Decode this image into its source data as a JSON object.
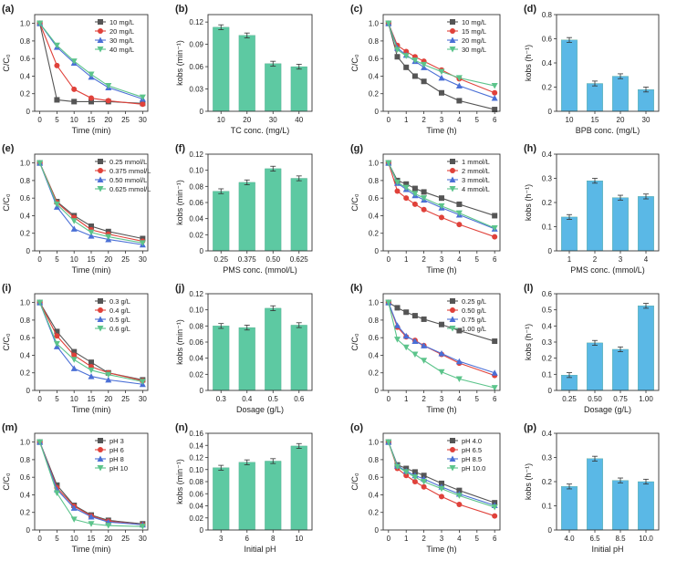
{
  "figure": {
    "panel_labels": [
      "(a)",
      "(b)",
      "(c)",
      "(d)",
      "(e)",
      "(f)",
      "(g)",
      "(h)",
      "(i)",
      "(j)",
      "(k)",
      "(l)",
      "(m)",
      "(n)",
      "(o)",
      "(p)"
    ]
  },
  "colors": {
    "black": "#555555",
    "red": "#e0413a",
    "blue": "#4a6fd6",
    "green": "#5cc48b",
    "bar_green": "#5dc9a2",
    "bar_blue": "#5ab8e6"
  },
  "chart_data": [
    {
      "type": "line",
      "title": "(a)",
      "xlabel": "Time (min)",
      "ylabel": "C/C₀",
      "x": [
        0,
        5,
        10,
        15,
        20,
        30
      ],
      "xlim": [
        -1.5,
        31.5
      ],
      "ylim": [
        0,
        1.1
      ],
      "xticks": [
        0,
        5,
        10,
        15,
        20,
        25,
        30
      ],
      "yticks": [
        0,
        0.2,
        0.4,
        0.6,
        0.8,
        1.0
      ],
      "legend_position": "top-right",
      "series": [
        {
          "name": "10 mg/L",
          "color": "black",
          "marker": "square",
          "values": [
            1.0,
            0.13,
            0.11,
            0.11,
            0.11,
            0.09
          ]
        },
        {
          "name": "20 mg/L",
          "color": "red",
          "marker": "circle",
          "values": [
            1.0,
            0.52,
            0.25,
            0.15,
            0.12,
            0.08
          ]
        },
        {
          "name": "30 mg/L",
          "color": "blue",
          "marker": "triangle",
          "values": [
            1.0,
            0.73,
            0.55,
            0.39,
            0.27,
            0.14
          ]
        },
        {
          "name": "40 mg/L",
          "color": "green",
          "marker": "triangle-down",
          "values": [
            1.0,
            0.75,
            0.57,
            0.42,
            0.29,
            0.16
          ]
        }
      ]
    },
    {
      "type": "bar",
      "title": "(b)",
      "xlabel": "TC conc. (mg/L)",
      "ylabel": "kobs (min⁻¹)",
      "categories": [
        "10",
        "20",
        "30",
        "40"
      ],
      "values": [
        0.113,
        0.102,
        0.064,
        0.06
      ],
      "ylim": [
        0,
        0.13
      ],
      "yticks": [
        0,
        0.03,
        0.06,
        0.09,
        0.12
      ],
      "bar_color": "bar_green"
    },
    {
      "type": "line",
      "title": "(c)",
      "xlabel": "Time (h)",
      "ylabel": "C/C₀",
      "x": [
        0,
        0.5,
        1,
        1.5,
        2,
        3,
        4,
        6
      ],
      "xlim": [
        -0.3,
        6.3
      ],
      "ylim": [
        0,
        1.1
      ],
      "xticks": [
        0,
        1,
        2,
        3,
        4,
        5,
        6
      ],
      "yticks": [
        0,
        0.2,
        0.4,
        0.6,
        0.8,
        1.0
      ],
      "legend_position": "top-right",
      "series": [
        {
          "name": "10 mg/L",
          "color": "black",
          "marker": "square",
          "values": [
            1.0,
            0.62,
            0.5,
            0.4,
            0.34,
            0.21,
            0.12,
            0.02
          ]
        },
        {
          "name": "15 mg/L",
          "color": "red",
          "marker": "circle",
          "values": [
            1.0,
            0.75,
            0.68,
            0.62,
            0.57,
            0.47,
            0.37,
            0.21
          ]
        },
        {
          "name": "20 mg/L",
          "color": "blue",
          "marker": "triangle",
          "values": [
            1.0,
            0.72,
            0.64,
            0.57,
            0.5,
            0.38,
            0.29,
            0.15
          ]
        },
        {
          "name": "30 mg/L",
          "color": "green",
          "marker": "triangle-down",
          "values": [
            1.0,
            0.7,
            0.63,
            0.58,
            0.53,
            0.45,
            0.38,
            0.29
          ]
        }
      ]
    },
    {
      "type": "bar",
      "title": "(d)",
      "xlabel": "BPB conc. (mg/L)",
      "ylabel": "kobs (h⁻¹)",
      "categories": [
        "10",
        "15",
        "20",
        "30"
      ],
      "values": [
        0.59,
        0.23,
        0.29,
        0.18
      ],
      "ylim": [
        0,
        0.8
      ],
      "yticks": [
        0,
        0.2,
        0.4,
        0.6,
        0.8
      ],
      "bar_color": "bar_blue"
    },
    {
      "type": "line",
      "title": "(e)",
      "xlabel": "Time (min)",
      "ylabel": "C/C₀",
      "x": [
        0,
        5,
        10,
        15,
        20,
        30
      ],
      "xlim": [
        -1.5,
        31.5
      ],
      "ylim": [
        0,
        1.1
      ],
      "xticks": [
        0,
        5,
        10,
        15,
        20,
        25,
        30
      ],
      "yticks": [
        0,
        0.2,
        0.4,
        0.6,
        0.8,
        1.0
      ],
      "legend_position": "top-right",
      "series": [
        {
          "name": "0.25 mmol/L",
          "color": "black",
          "marker": "square",
          "values": [
            1.0,
            0.56,
            0.4,
            0.28,
            0.22,
            0.14
          ]
        },
        {
          "name": "0.375 mmol/L",
          "color": "red",
          "marker": "circle",
          "values": [
            1.0,
            0.55,
            0.38,
            0.24,
            0.19,
            0.11
          ]
        },
        {
          "name": "0.50 mmol/L",
          "color": "blue",
          "marker": "triangle",
          "values": [
            1.0,
            0.5,
            0.25,
            0.17,
            0.13,
            0.07
          ]
        },
        {
          "name": "0.625 mmol/L",
          "color": "green",
          "marker": "triangle-down",
          "values": [
            1.0,
            0.53,
            0.34,
            0.21,
            0.16,
            0.09
          ]
        }
      ]
    },
    {
      "type": "bar",
      "title": "(f)",
      "xlabel": "PMS conc. (mmol/L)",
      "ylabel": "kobs (min⁻¹)",
      "categories": [
        "0.25",
        "0.375",
        "0.50",
        "0.625"
      ],
      "values": [
        0.074,
        0.085,
        0.102,
        0.09
      ],
      "ylim": [
        0,
        0.12
      ],
      "yticks": [
        0,
        0.02,
        0.04,
        0.06,
        0.08,
        0.1,
        0.12
      ],
      "bar_color": "bar_green"
    },
    {
      "type": "line",
      "title": "(g)",
      "xlabel": "Time (h)",
      "ylabel": "C/C₀",
      "x": [
        0,
        0.5,
        1,
        1.5,
        2,
        3,
        4,
        6
      ],
      "xlim": [
        -0.3,
        6.3
      ],
      "ylim": [
        0,
        1.1
      ],
      "xticks": [
        0,
        1,
        2,
        3,
        4,
        5,
        6
      ],
      "yticks": [
        0,
        0.2,
        0.4,
        0.6,
        0.8,
        1.0
      ],
      "legend_position": "top-right",
      "series": [
        {
          "name": "1 mmol/L",
          "color": "black",
          "marker": "square",
          "values": [
            1.0,
            0.8,
            0.76,
            0.71,
            0.67,
            0.6,
            0.53,
            0.4
          ]
        },
        {
          "name": "2 mmol/L",
          "color": "red",
          "marker": "circle",
          "values": [
            1.0,
            0.68,
            0.6,
            0.53,
            0.47,
            0.38,
            0.3,
            0.16
          ]
        },
        {
          "name": "3 mmol/L",
          "color": "blue",
          "marker": "triangle",
          "values": [
            1.0,
            0.77,
            0.7,
            0.63,
            0.58,
            0.49,
            0.41,
            0.25
          ]
        },
        {
          "name": "4 mmol/L",
          "color": "green",
          "marker": "triangle-down",
          "values": [
            1.0,
            0.78,
            0.72,
            0.65,
            0.6,
            0.51,
            0.43,
            0.26
          ]
        }
      ]
    },
    {
      "type": "bar",
      "title": "(h)",
      "xlabel": "PMS conc. (mmol/L)",
      "ylabel": "kobs (h⁻¹)",
      "categories": [
        "1",
        "2",
        "3",
        "4"
      ],
      "values": [
        0.14,
        0.29,
        0.22,
        0.225
      ],
      "ylim": [
        0,
        0.4
      ],
      "yticks": [
        0,
        0.1,
        0.2,
        0.3,
        0.4
      ],
      "bar_color": "bar_blue"
    },
    {
      "type": "line",
      "title": "(i)",
      "xlabel": "Time (min)",
      "ylabel": "C/C₀",
      "x": [
        0,
        5,
        10,
        15,
        20,
        30
      ],
      "xlim": [
        -1.5,
        31.5
      ],
      "ylim": [
        0,
        1.1
      ],
      "xticks": [
        0,
        5,
        10,
        15,
        20,
        25,
        30
      ],
      "yticks": [
        0,
        0.2,
        0.4,
        0.6,
        0.8,
        1.0
      ],
      "legend_position": "top-right",
      "series": [
        {
          "name": "0.3 g/L",
          "color": "black",
          "marker": "square",
          "values": [
            1.0,
            0.67,
            0.44,
            0.32,
            0.2,
            0.12
          ]
        },
        {
          "name": "0.4 g/L",
          "color": "red",
          "marker": "circle",
          "values": [
            1.0,
            0.62,
            0.4,
            0.27,
            0.2,
            0.11
          ]
        },
        {
          "name": "0.5 g/L",
          "color": "blue",
          "marker": "triangle",
          "values": [
            1.0,
            0.5,
            0.25,
            0.16,
            0.12,
            0.07
          ]
        },
        {
          "name": "0.6 g/L",
          "color": "green",
          "marker": "triangle-down",
          "values": [
            1.0,
            0.53,
            0.35,
            0.23,
            0.18,
            0.1
          ]
        }
      ]
    },
    {
      "type": "bar",
      "title": "(j)",
      "xlabel": "Dosage (g/L)",
      "ylabel": "kobs (min⁻¹)",
      "categories": [
        "0.3",
        "0.4",
        "0.5",
        "0.6"
      ],
      "values": [
        0.08,
        0.078,
        0.102,
        0.081
      ],
      "ylim": [
        0,
        0.12
      ],
      "yticks": [
        0,
        0.02,
        0.04,
        0.06,
        0.08,
        0.1,
        0.12
      ],
      "bar_color": "bar_green"
    },
    {
      "type": "line",
      "title": "(k)",
      "xlabel": "Time (h)",
      "ylabel": "C/C₀",
      "x": [
        0,
        0.5,
        1,
        1.5,
        2,
        3,
        4,
        6
      ],
      "xlim": [
        -0.3,
        6.3
      ],
      "ylim": [
        0,
        1.1
      ],
      "xticks": [
        0,
        1,
        2,
        3,
        4,
        5,
        6
      ],
      "yticks": [
        0,
        0.2,
        0.4,
        0.6,
        0.8,
        1.0
      ],
      "legend_position": "top-right",
      "series": [
        {
          "name": "0.25 g/L",
          "color": "black",
          "marker": "square",
          "values": [
            1.0,
            0.94,
            0.89,
            0.85,
            0.81,
            0.75,
            0.68,
            0.56
          ]
        },
        {
          "name": "0.50 g/L",
          "color": "red",
          "marker": "circle",
          "values": [
            1.0,
            0.72,
            0.61,
            0.57,
            0.51,
            0.41,
            0.31,
            0.17
          ]
        },
        {
          "name": "0.75 g/L",
          "color": "blue",
          "marker": "triangle",
          "values": [
            1.0,
            0.74,
            0.62,
            0.56,
            0.51,
            0.42,
            0.33,
            0.2
          ]
        },
        {
          "name": "1.00 g/L",
          "color": "green",
          "marker": "triangle-down",
          "values": [
            1.0,
            0.58,
            0.49,
            0.41,
            0.34,
            0.21,
            0.13,
            0.03
          ]
        }
      ]
    },
    {
      "type": "bar",
      "title": "(l)",
      "xlabel": "Dosage (g/L)",
      "ylabel": "kobs (h⁻¹)",
      "categories": [
        "0.25",
        "0.50",
        "0.75",
        "1.00"
      ],
      "values": [
        0.095,
        0.295,
        0.255,
        0.525
      ],
      "ylim": [
        0,
        0.6
      ],
      "yticks": [
        0,
        0.1,
        0.2,
        0.3,
        0.4,
        0.5,
        0.6
      ],
      "bar_color": "bar_blue"
    },
    {
      "type": "line",
      "title": "(m)",
      "xlabel": "Time (min)",
      "ylabel": "C/C₀",
      "x": [
        0,
        5,
        10,
        15,
        20,
        30
      ],
      "xlim": [
        -1.5,
        31.5
      ],
      "ylim": [
        0,
        1.1
      ],
      "xticks": [
        0,
        5,
        10,
        15,
        20,
        25,
        30
      ],
      "yticks": [
        0,
        0.2,
        0.4,
        0.6,
        0.8,
        1.0
      ],
      "legend_position": "top-right",
      "series": [
        {
          "name": "pH 3",
          "color": "black",
          "marker": "square",
          "values": [
            1.0,
            0.51,
            0.28,
            0.17,
            0.11,
            0.07
          ]
        },
        {
          "name": "pH 6",
          "color": "red",
          "marker": "circle",
          "values": [
            1.0,
            0.48,
            0.27,
            0.16,
            0.1,
            0.06
          ]
        },
        {
          "name": "pH 8",
          "color": "blue",
          "marker": "triangle",
          "values": [
            1.0,
            0.46,
            0.25,
            0.15,
            0.09,
            0.06
          ]
        },
        {
          "name": "pH 10",
          "color": "green",
          "marker": "triangle-down",
          "values": [
            1.0,
            0.42,
            0.12,
            0.07,
            0.05,
            0.04
          ]
        }
      ]
    },
    {
      "type": "bar",
      "title": "(n)",
      "xlabel": "Initial pH",
      "ylabel": "kobs (min⁻¹)",
      "categories": [
        "3",
        "6",
        "8",
        "10"
      ],
      "values": [
        0.103,
        0.112,
        0.114,
        0.139
      ],
      "ylim": [
        0,
        0.16
      ],
      "yticks": [
        0,
        0.02,
        0.04,
        0.06,
        0.08,
        0.1,
        0.12,
        0.14,
        0.16
      ],
      "bar_color": "bar_green"
    },
    {
      "type": "line",
      "title": "(o)",
      "xlabel": "Time (h)",
      "ylabel": "C/C₀",
      "x": [
        0,
        0.5,
        1,
        1.5,
        2,
        3,
        4,
        6
      ],
      "xlim": [
        -0.3,
        6.3
      ],
      "ylim": [
        0,
        1.1
      ],
      "xticks": [
        0,
        1,
        2,
        3,
        4,
        5,
        6
      ],
      "yticks": [
        0,
        0.2,
        0.4,
        0.6,
        0.8,
        1.0
      ],
      "legend_position": "top-right",
      "series": [
        {
          "name": "pH 4.0",
          "color": "black",
          "marker": "square",
          "values": [
            1.0,
            0.74,
            0.7,
            0.66,
            0.62,
            0.53,
            0.45,
            0.31
          ]
        },
        {
          "name": "pH 6.5",
          "color": "red",
          "marker": "circle",
          "values": [
            1.0,
            0.7,
            0.62,
            0.55,
            0.49,
            0.38,
            0.29,
            0.16
          ]
        },
        {
          "name": "pH 8.5",
          "color": "blue",
          "marker": "triangle",
          "values": [
            1.0,
            0.73,
            0.67,
            0.62,
            0.58,
            0.49,
            0.41,
            0.28
          ]
        },
        {
          "name": "pH 10.0",
          "color": "green",
          "marker": "triangle-down",
          "values": [
            1.0,
            0.72,
            0.66,
            0.6,
            0.55,
            0.47,
            0.39,
            0.26
          ]
        }
      ]
    },
    {
      "type": "bar",
      "title": "(p)",
      "xlabel": "Initial pH",
      "ylabel": "kobs (h⁻¹)",
      "categories": [
        "4.0",
        "6.5",
        "8.5",
        "10.0"
      ],
      "values": [
        0.18,
        0.295,
        0.205,
        0.2
      ],
      "ylim": [
        0,
        0.4
      ],
      "yticks": [
        0,
        0.1,
        0.2,
        0.3,
        0.4
      ],
      "bar_color": "bar_blue"
    }
  ]
}
